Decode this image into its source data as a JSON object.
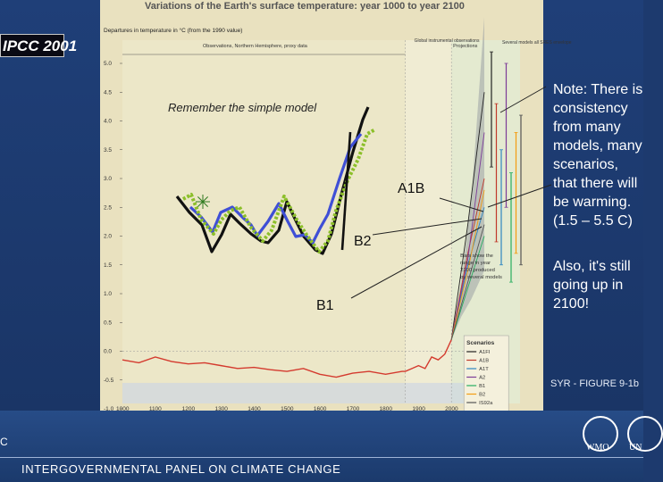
{
  "badge": "IPCC 2001",
  "figure": {
    "title": "Variations of the Earth's surface temperature: year 1000 to year 2100",
    "subtitle": "Departures in temperature in °C (from the 1990 value)",
    "panel_labels": {
      "observations_left": "Observations, Northern Hemisphere, proxy data",
      "observations_global": "Global instrumental observations",
      "projections": "Projections",
      "several_models": "Several models all SRES envelope"
    },
    "range_note": "Bars show the range in year 2100 produced by several models",
    "scenarios_title": "Scenarios",
    "scenarios": [
      "A1FI",
      "A1B",
      "A1T",
      "A2",
      "B1",
      "B2",
      "IS92a"
    ]
  },
  "overlay": {
    "remember": "Remember the simple model",
    "a1b": "A1B",
    "b2": "B2",
    "b1": "B1"
  },
  "notes": {
    "note1": "Note: There is\nconsistency\nfrom many\nmodels, many\nscenarios,\nthat there will\nbe warming.\n(1.5 – 5.5 C)",
    "note2": "Also, it's still\ngoing up in\n2100!"
  },
  "syr_label": "SYR - FIGURE 9-1b",
  "footer": {
    "left_fragment": "C",
    "org": "INTERGOVERNMENTAL PANEL ON CLIMATE CHANGE",
    "logo1": "WMO",
    "logo2": "UN"
  },
  "chart_data": {
    "type": "line",
    "title": "Variations of the Earth's surface temperature: year 1000 to year 2100",
    "ylabel": "Departures in temperature in °C (from the 1990 value)",
    "xlim": [
      1000,
      2100
    ],
    "ylim": [
      -1.0,
      5.0
    ],
    "x_ticks": [
      1000,
      1100,
      1200,
      1300,
      1400,
      1500,
      1600,
      1700,
      1800,
      1900,
      2000,
      2100
    ],
    "y_ticks": [
      -1.0,
      -0.5,
      0.0,
      0.5,
      1.0,
      1.5,
      2.0,
      2.5,
      3.0,
      3.5,
      4.0,
      4.5,
      5.0
    ],
    "series": [
      {
        "name": "Observations",
        "x": [
          1000,
          1050,
          1100,
          1150,
          1200,
          1250,
          1300,
          1350,
          1400,
          1450,
          1500,
          1550,
          1600,
          1650,
          1700,
          1750,
          1800,
          1850,
          1860,
          1880,
          1900,
          1920,
          1940,
          1960,
          1980,
          2000
        ],
        "y": [
          -0.15,
          -0.2,
          -0.1,
          -0.18,
          -0.22,
          -0.2,
          -0.25,
          -0.3,
          -0.28,
          -0.32,
          -0.35,
          -0.3,
          -0.4,
          -0.45,
          -0.38,
          -0.35,
          -0.4,
          -0.35,
          -0.35,
          -0.3,
          -0.25,
          -0.3,
          -0.1,
          -0.15,
          -0.05,
          0.2
        ],
        "color": "#d43a2e"
      },
      {
        "name": "A1FI",
        "x": [
          2000,
          2050,
          2100
        ],
        "y": [
          0.2,
          2.2,
          4.5
        ],
        "color": "#222222"
      },
      {
        "name": "A1B",
        "x": [
          2000,
          2050,
          2100
        ],
        "y": [
          0.2,
          1.7,
          3.0
        ],
        "color": "#c0392b"
      },
      {
        "name": "A1T",
        "x": [
          2000,
          2050,
          2100
        ],
        "y": [
          0.2,
          1.5,
          2.5
        ],
        "color": "#2e86c1"
      },
      {
        "name": "A2",
        "x": [
          2000,
          2050,
          2100
        ],
        "y": [
          0.2,
          1.6,
          3.8
        ],
        "color": "#7d3c98"
      },
      {
        "name": "B1",
        "x": [
          2000,
          2050,
          2100
        ],
        "y": [
          0.2,
          1.1,
          2.0
        ],
        "color": "#27ae60"
      },
      {
        "name": "B2",
        "x": [
          2000,
          2050,
          2100
        ],
        "y": [
          0.2,
          1.4,
          2.8
        ],
        "color": "#f39c12"
      },
      {
        "name": "IS92a",
        "x": [
          2000,
          2050,
          2100
        ],
        "y": [
          0.2,
          1.2,
          2.2
        ],
        "color": "#555555"
      }
    ],
    "range_bars_2100": [
      {
        "name": "A1FI",
        "low": 3.2,
        "high": 5.2,
        "color": "#222222"
      },
      {
        "name": "A1B",
        "low": 1.9,
        "high": 4.3,
        "color": "#c0392b"
      },
      {
        "name": "A1T",
        "low": 1.5,
        "high": 3.5,
        "color": "#2e86c1"
      },
      {
        "name": "A2",
        "low": 2.5,
        "high": 5.0,
        "color": "#7d3c98"
      },
      {
        "name": "B1",
        "low": 1.2,
        "high": 3.1,
        "color": "#27ae60"
      },
      {
        "name": "B2",
        "low": 1.7,
        "high": 3.8,
        "color": "#f39c12"
      },
      {
        "name": "IS92a",
        "low": 1.5,
        "high": 4.1,
        "color": "#555555"
      }
    ]
  }
}
